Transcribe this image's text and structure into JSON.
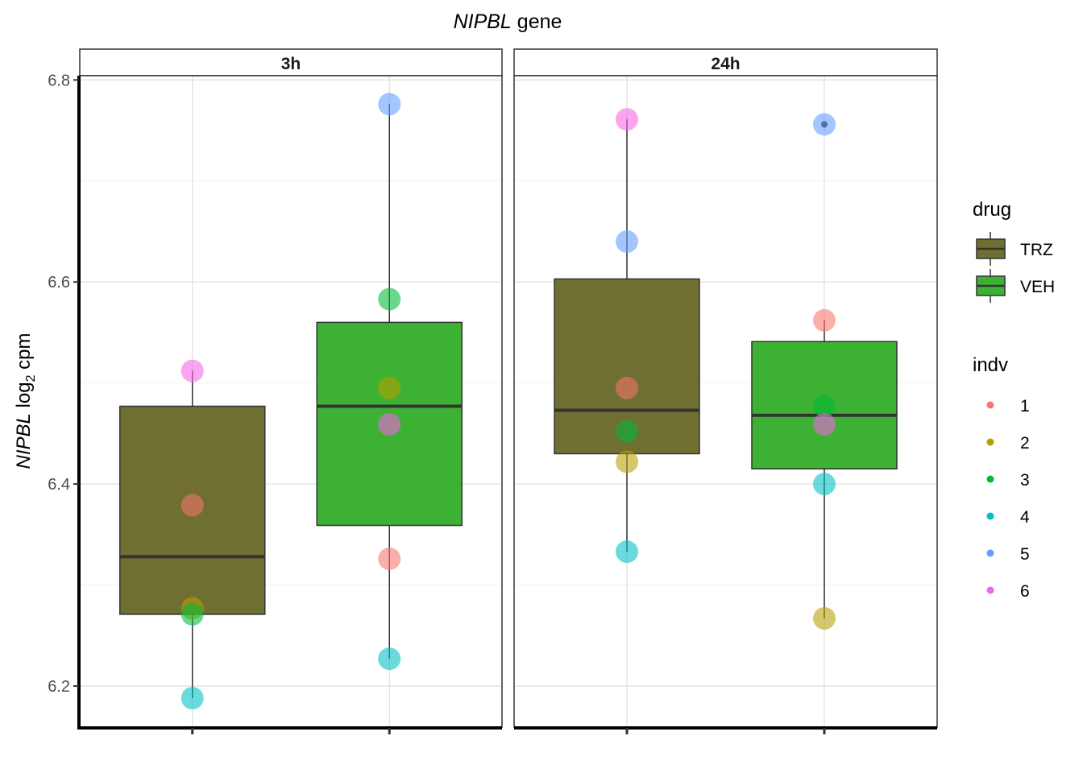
{
  "chart_data": {
    "type": "box",
    "title": {
      "gene_italic": "NIPBL",
      "rest": " gene"
    },
    "ylabel": {
      "gene_italic": "NIPBL",
      "log": " log",
      "sub": "2",
      "unit": " cpm"
    },
    "ylim": [
      6.16,
      6.81
    ],
    "yticks": [
      6.2,
      6.4,
      6.6,
      6.8
    ],
    "ytick_labels": [
      "6.2",
      "6.4",
      "6.6",
      "6.8"
    ],
    "grid": true,
    "facets": [
      {
        "label": "3h",
        "boxes": [
          {
            "drug": "TRZ",
            "q1": 6.271,
            "median": 6.328,
            "q3": 6.477,
            "whisker_low": 6.188,
            "whisker_high": 6.512
          },
          {
            "drug": "VEH",
            "q1": 6.359,
            "median": 6.477,
            "q3": 6.56,
            "whisker_low": 6.227,
            "whisker_high": 6.776
          }
        ],
        "points": [
          {
            "drug": "TRZ",
            "indv": "1",
            "y": 6.379
          },
          {
            "drug": "TRZ",
            "indv": "2",
            "y": 6.277
          },
          {
            "drug": "TRZ",
            "indv": "3",
            "y": 6.271
          },
          {
            "drug": "TRZ",
            "indv": "4",
            "y": 6.188
          },
          {
            "drug": "TRZ",
            "indv": "6",
            "y": 6.512
          },
          {
            "drug": "VEH",
            "indv": "1",
            "y": 6.326
          },
          {
            "drug": "VEH",
            "indv": "2",
            "y": 6.495
          },
          {
            "drug": "VEH",
            "indv": "3",
            "y": 6.583
          },
          {
            "drug": "VEH",
            "indv": "4",
            "y": 6.227
          },
          {
            "drug": "VEH",
            "indv": "5",
            "y": 6.776
          },
          {
            "drug": "VEH",
            "indv": "6",
            "y": 6.459
          }
        ]
      },
      {
        "label": "24h",
        "boxes": [
          {
            "drug": "TRZ",
            "q1": 6.43,
            "median": 6.473,
            "q3": 6.603,
            "whisker_low": 6.333,
            "whisker_high": 6.761
          },
          {
            "drug": "VEH",
            "q1": 6.415,
            "median": 6.468,
            "q3": 6.541,
            "whisker_low": 6.267,
            "whisker_high": 6.562
          }
        ],
        "points": [
          {
            "drug": "TRZ",
            "indv": "1",
            "y": 6.495
          },
          {
            "drug": "TRZ",
            "indv": "2",
            "y": 6.422
          },
          {
            "drug": "TRZ",
            "indv": "3",
            "y": 6.452
          },
          {
            "drug": "TRZ",
            "indv": "4",
            "y": 6.333
          },
          {
            "drug": "TRZ",
            "indv": "5",
            "y": 6.64
          },
          {
            "drug": "TRZ",
            "indv": "6",
            "y": 6.761
          },
          {
            "drug": "VEH",
            "indv": "1",
            "y": 6.562
          },
          {
            "drug": "VEH",
            "indv": "2",
            "y": 6.267
          },
          {
            "drug": "VEH",
            "indv": "3",
            "y": 6.477
          },
          {
            "drug": "VEH",
            "indv": "4",
            "y": 6.4
          },
          {
            "drug": "VEH",
            "indv": "5",
            "y": 6.756
          },
          {
            "drug": "VEH",
            "indv": "6",
            "y": 6.459
          }
        ],
        "outliers": [
          {
            "drug": "VEH",
            "y": 6.756
          }
        ]
      }
    ],
    "legend_drug": {
      "title": "drug",
      "items": [
        {
          "label": "TRZ",
          "color": "#6f6f32"
        },
        {
          "label": "VEH",
          "color": "#3db134"
        }
      ]
    },
    "legend_indv": {
      "title": "indv",
      "items": [
        {
          "label": "1",
          "color": "#f8766d"
        },
        {
          "label": "2",
          "color": "#b79f00"
        },
        {
          "label": "3",
          "color": "#00ba38"
        },
        {
          "label": "4",
          "color": "#00bfc4"
        },
        {
          "label": "5",
          "color": "#619cff"
        },
        {
          "label": "6",
          "color": "#f564e3"
        }
      ]
    }
  }
}
